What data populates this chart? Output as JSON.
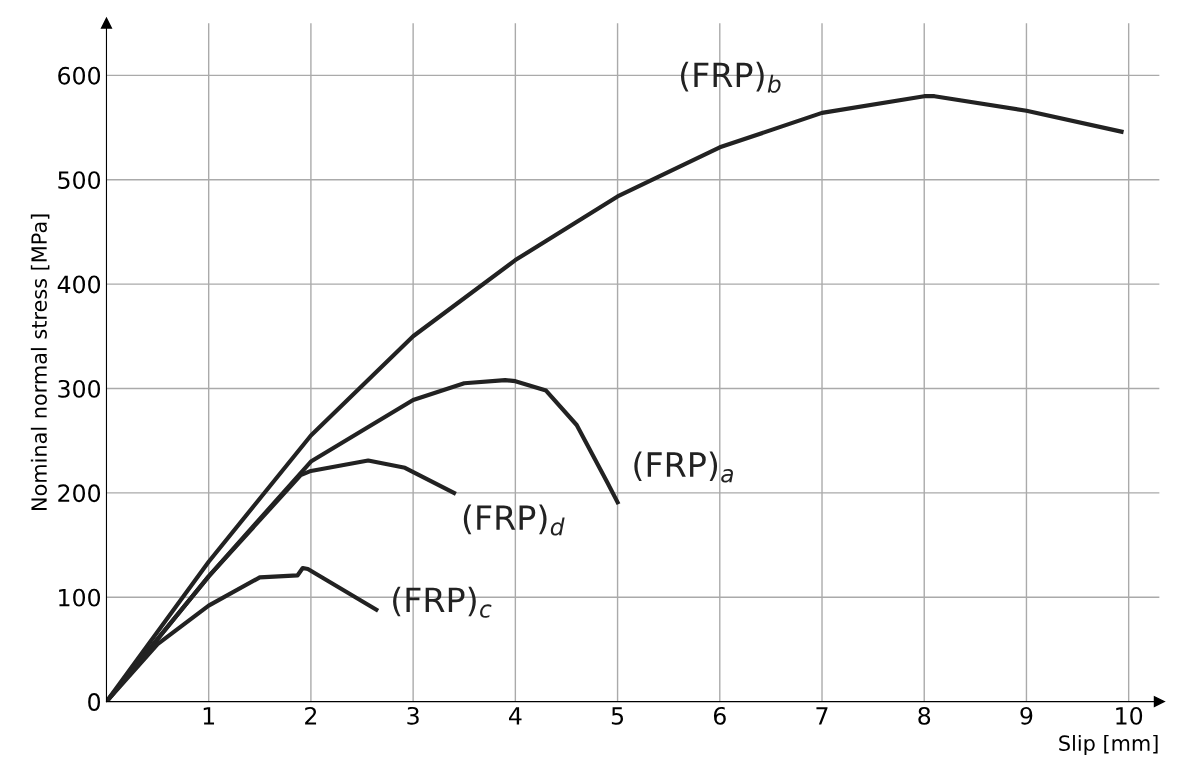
{
  "chart_data": {
    "type": "line",
    "xlabel": "Slip [mm]",
    "ylabel": "Nominal normal stress [MPa]",
    "xlim": [
      0,
      10.3
    ],
    "ylim": [
      0,
      650
    ],
    "xticks": [
      1,
      2,
      3,
      4,
      5,
      6,
      7,
      8,
      9,
      10
    ],
    "yticks": [
      0,
      100,
      200,
      300,
      400,
      500,
      600
    ],
    "grid": true,
    "marker": "none",
    "line_style": "solid",
    "series": [
      {
        "name": "(FRP)$_{b}$",
        "color": "#222222",
        "x": [
          0,
          1,
          2,
          3,
          4,
          5,
          6,
          7,
          8,
          8.1,
          9,
          9.93
        ],
        "values": [
          0,
          134,
          255,
          350,
          423,
          484,
          531,
          564,
          580,
          580,
          566,
          546
        ]
      },
      {
        "name": "(FRP)$_{a}$",
        "color": "#222222",
        "x": [
          0,
          1,
          2,
          3,
          3.5,
          3.9,
          4,
          4.3,
          4.6,
          4.9,
          5
        ],
        "values": [
          0,
          120,
          230,
          289,
          305,
          308,
          307,
          298,
          265,
          210,
          191
        ]
      },
      {
        "name": "(FRP)$_{d}$",
        "color": "#222222",
        "x": [
          0,
          1,
          1.9,
          2,
          2.56,
          2.92,
          3.4
        ],
        "values": [
          0,
          120,
          217,
          221,
          231,
          224,
          200
        ]
      },
      {
        "name": "(FRP)$_{c}$",
        "color": "#222222",
        "x": [
          0,
          0.5,
          1,
          1.5,
          1.87,
          1.92,
          1.97,
          2.64
        ],
        "values": [
          0,
          55,
          92,
          119,
          121,
          128,
          127,
          88
        ]
      }
    ]
  }
}
